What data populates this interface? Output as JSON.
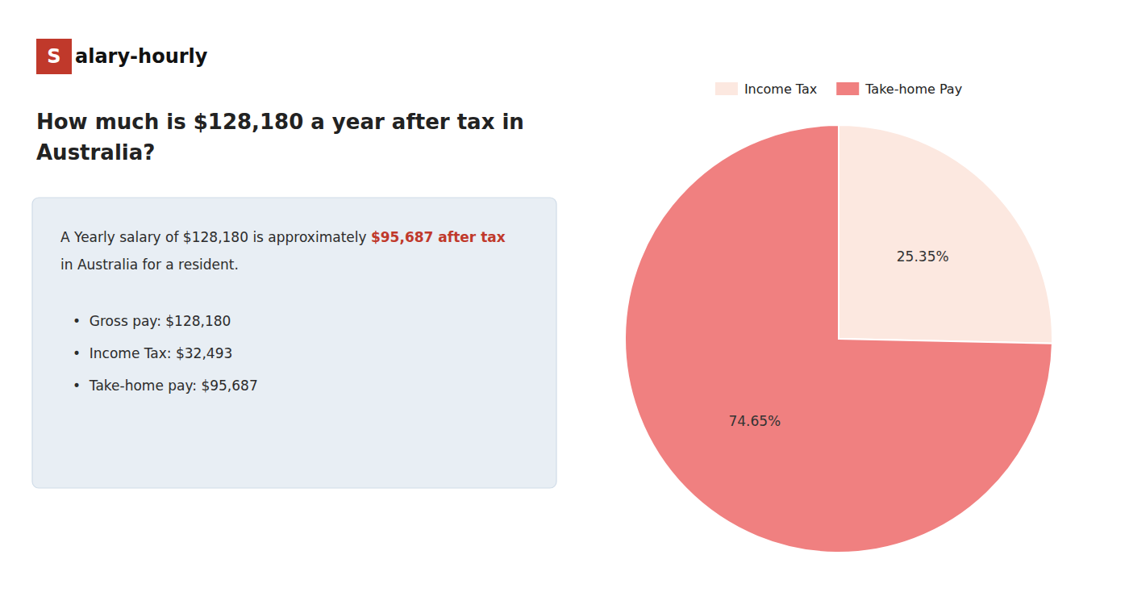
{
  "chart_data": {
    "type": "pie",
    "title": "How much is $128,180 a year after tax in\nAustralia?",
    "categories": [
      "Income Tax",
      "Take-home Pay"
    ],
    "values": [
      25.35,
      74.65
    ],
    "value_labels": [
      "25.35%",
      "74.65%"
    ],
    "colors": [
      "#fce8e0",
      "#f08080"
    ],
    "data_labels": true,
    "legend": "top",
    "logo": [
      {
        "text": "S",
        "color": "#c0392b"
      },
      {
        "text": "alary-hourly"
      }
    ],
    "body": [
      [
        {
          "text": "A Yearly salary of $128,180 is approximately "
        },
        {
          "text": "$95,687 after tax",
          "color": "#c0392b"
        }
      ],
      [
        {
          "text": "in Australia for a resident."
        }
      ]
    ],
    "bullets": [
      "•  Gross pay: $128,180",
      "•  Income Tax: $32,493",
      "•  Take-home pay: $95,687"
    ]
  }
}
